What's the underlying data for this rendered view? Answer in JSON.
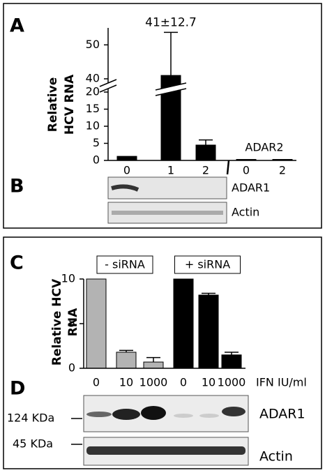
{
  "panel_labels": [
    "A",
    "B",
    "C",
    "D"
  ],
  "chart_data": [
    {
      "type": "bar",
      "ylabel": [
        "Relative",
        "HCV RNA"
      ],
      "categories": [
        "0",
        "1",
        "2",
        "0",
        "2"
      ],
      "values": [
        1.2,
        41,
        4.5,
        0.3,
        0.3
      ],
      "errors": [
        null,
        12.7,
        1.5,
        null,
        null
      ],
      "value_labels": [
        null,
        "41±12.7",
        null,
        null,
        null
      ],
      "color": "#000000",
      "ylim": [
        0,
        55
      ],
      "yticks": [
        0,
        5,
        10,
        15,
        20,
        40,
        50
      ],
      "axis_break": [
        20,
        40
      ],
      "annotation": "ADAR2"
    },
    {
      "type": "bar",
      "ylabel": [
        "Relative  HCV",
        "RNA"
      ],
      "categories": [
        "0",
        "10",
        "1000",
        "0",
        "10",
        "1000"
      ],
      "xlabel": "IFN IU/ml",
      "series": [
        {
          "name": "- siRNA",
          "color": "#b3b3b3",
          "values": [
            10,
            1.8,
            0.7,
            null,
            null,
            null
          ],
          "errors": [
            null,
            0.2,
            0.5,
            null,
            null,
            null
          ]
        },
        {
          "name": "+ siRNA",
          "color": "#000000",
          "values": [
            null,
            null,
            null,
            10,
            8.2,
            1.5
          ],
          "errors": [
            null,
            null,
            null,
            null,
            0.2,
            0.3
          ]
        }
      ],
      "ylim": [
        0,
        10
      ],
      "yticks": [
        0,
        5,
        10
      ]
    }
  ],
  "blots": [
    {
      "labels": [
        "ADAR1",
        "Actin"
      ]
    },
    {
      "markers": [
        "124 KDa",
        "45 KDa"
      ],
      "labels": [
        "ADAR1",
        "Actin"
      ]
    }
  ]
}
